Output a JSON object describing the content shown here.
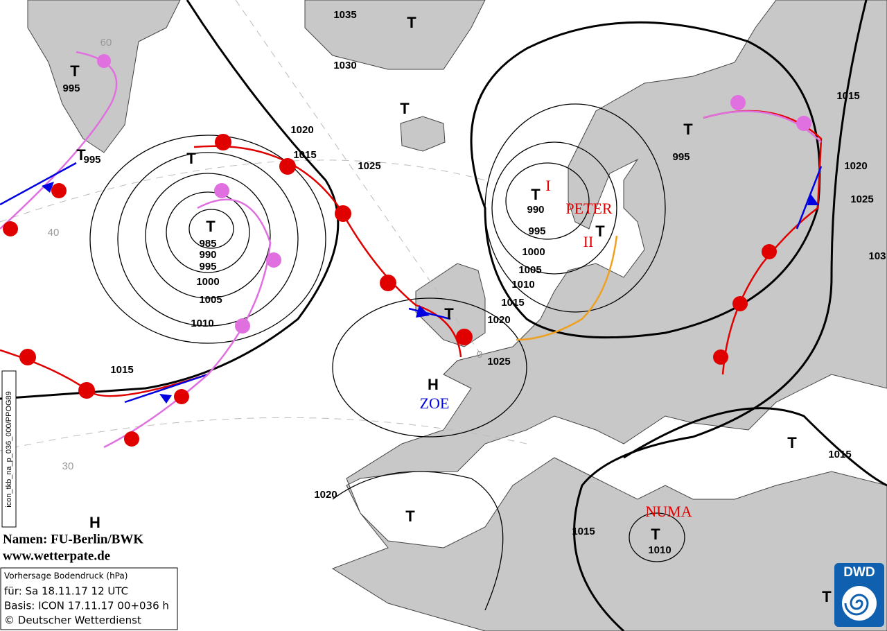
{
  "isobar_labels": [
    "1035",
    "1030",
    "1020",
    "1015",
    "1025",
    "995",
    "995",
    "985",
    "990",
    "995",
    "1000",
    "1005",
    "1010",
    "1015",
    "990",
    "995",
    "1000",
    "1005",
    "1010",
    "1015",
    "1020",
    "1025",
    "995",
    "1015",
    "1020",
    "1025",
    "103",
    "1015",
    "1020",
    "1015",
    "1010"
  ],
  "centers": [
    "T",
    "T",
    "T",
    "T",
    "T",
    "T",
    "T",
    "T",
    "T",
    "T",
    "H",
    "T",
    "T",
    "H",
    "T",
    "T"
  ],
  "system_names": [
    "I",
    "PETER",
    "II",
    "ZOE",
    "NUMA"
  ],
  "grid_labels": [
    "60",
    "40",
    "30",
    "0"
  ],
  "side_label": "icon_tkb_na_p_036_000/PPOG89",
  "credits": [
    "Namen: FU-Berlin/BWK",
    "www.wetterpate.de"
  ],
  "info_box": {
    "lines": [
      "Vorhersage Bodendruck (hPa)",
      "für:  Sa 18.11.17  12 UTC",
      "Basis: ICON  17.11.17 00+036 h",
      "© Deutscher Wetterdienst"
    ]
  },
  "logo": "DWD"
}
